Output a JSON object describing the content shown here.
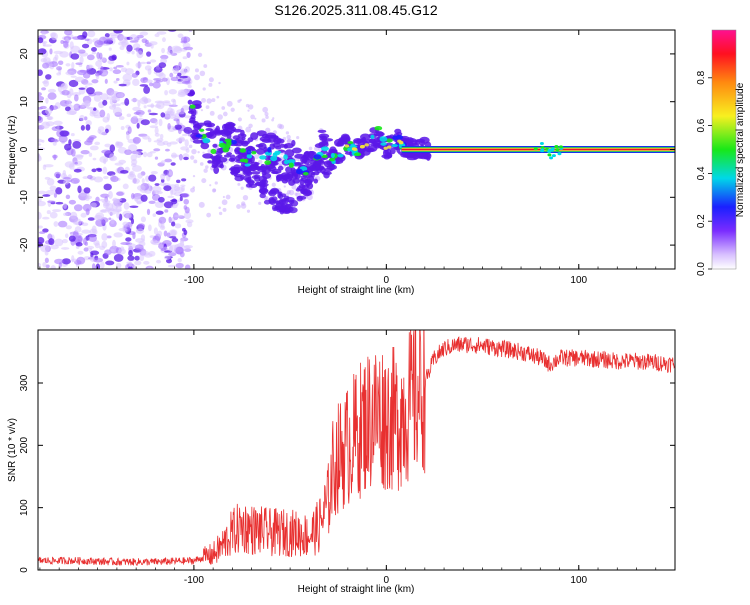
{
  "title": "S126.2025.311.08.45.G12",
  "colors": {
    "snr_line": "#e83030",
    "dense_fill": "#5a18e8",
    "ridge_line": "#e8142a",
    "ridge_mid": "#f0e040",
    "ridge_outer": "#20c060",
    "frame": "#000000"
  },
  "chart_data": [
    {
      "type": "heatmap",
      "title": "S126.2025.311.08.45.G12",
      "xlabel": "Height of straight line (km)",
      "ylabel": "Frequency (Hz)",
      "xlim": [
        -181,
        150
      ],
      "ylim": [
        -25,
        25
      ],
      "x_ticks": [
        {
          "value": -100,
          "label": "-100"
        },
        {
          "value": 0,
          "label": "0"
        },
        {
          "value": 100,
          "label": "100"
        }
      ],
      "y_ticks": [
        {
          "value": 20,
          "label": "20"
        },
        {
          "value": 10,
          "label": "10"
        },
        {
          "value": 0,
          "label": "0"
        },
        {
          "value": -10,
          "label": "-10"
        },
        {
          "value": -20,
          "label": "-20"
        }
      ],
      "colorbar": {
        "label": "Normalized spectral amplitude",
        "range": [
          0,
          1
        ],
        "ticks": [
          {
            "value": 0.0,
            "label": "0.0"
          },
          {
            "value": 0.2,
            "label": "0.2"
          },
          {
            "value": 0.4,
            "label": "0.4"
          },
          {
            "value": 0.6,
            "label": "0.6"
          },
          {
            "value": 0.8,
            "label": "0.8"
          }
        ],
        "colormap": "rainbow",
        "placement": "right"
      },
      "noise_region_x": [
        -181,
        -102
      ],
      "ridge": {
        "x": [
          -102,
          -95,
          -88,
          -80,
          -72,
          -64,
          -56,
          -48,
          -40,
          -34,
          -28,
          -22,
          -16,
          -10,
          -4,
          0,
          6,
          12,
          20,
          40,
          60,
          75,
          80,
          85,
          90,
          110,
          150
        ],
        "y": [
          9,
          2,
          0,
          1,
          -2,
          -1,
          -2,
          -3,
          -5,
          0,
          -2,
          1,
          0,
          1,
          3,
          0,
          2,
          0,
          0,
          0,
          0,
          0,
          1,
          -1,
          0,
          0,
          0
        ]
      },
      "lower_branch": {
        "x": [
          -80,
          -70,
          -62,
          -56,
          -50,
          -46,
          -42,
          -38,
          -34
        ],
        "y": [
          -3,
          -6,
          -9,
          -11,
          -12,
          -10,
          -7,
          -4,
          -2
        ]
      }
    },
    {
      "type": "line",
      "xlabel": "Height of straight line (km)",
      "ylabel": "SNR (10 * v/v)",
      "xlim": [
        -181,
        150
      ],
      "ylim": [
        0,
        385
      ],
      "x_ticks": [
        {
          "value": -100,
          "label": "-100"
        },
        {
          "value": 0,
          "label": "0"
        },
        {
          "value": 100,
          "label": "100"
        }
      ],
      "y_ticks": [
        {
          "value": 0,
          "label": "0"
        },
        {
          "value": 100,
          "label": "100"
        },
        {
          "value": 200,
          "label": "200"
        },
        {
          "value": 300,
          "label": "300"
        }
      ],
      "series": [
        {
          "x": [
            -181,
            -160,
            -140,
            -120,
            -100,
            -90,
            -85,
            -80,
            -75,
            -70,
            -60,
            -50,
            -40,
            -35,
            -30,
            -28,
            -25,
            -20,
            -15,
            -10,
            -5,
            0,
            5,
            10,
            15,
            20,
            25,
            30,
            35,
            40,
            50,
            60,
            70,
            80,
            85,
            90,
            100,
            110,
            120,
            130,
            140,
            150
          ],
          "values": [
            15,
            15,
            13,
            13,
            15,
            25,
            40,
            60,
            70,
            65,
            60,
            60,
            55,
            70,
            110,
            160,
            180,
            200,
            220,
            240,
            250,
            245,
            240,
            260,
            275,
            300,
            340,
            355,
            360,
            362,
            360,
            355,
            350,
            340,
            330,
            340,
            340,
            338,
            335,
            335,
            333,
            330
          ]
        }
      ]
    }
  ]
}
